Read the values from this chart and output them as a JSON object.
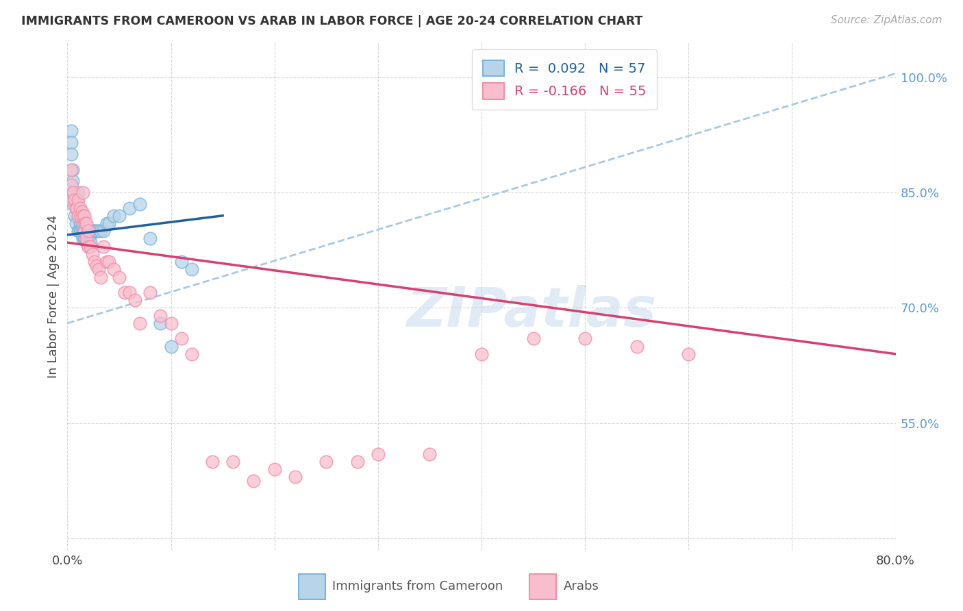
{
  "title": "IMMIGRANTS FROM CAMEROON VS ARAB IN LABOR FORCE | AGE 20-24 CORRELATION CHART",
  "source": "Source: ZipAtlas.com",
  "ylabel": "In Labor Force | Age 20-24",
  "x_min": 0.0,
  "x_max": 0.8,
  "y_min": 0.385,
  "y_max": 1.045,
  "x_ticks": [
    0.0,
    0.1,
    0.2,
    0.3,
    0.4,
    0.5,
    0.6,
    0.7,
    0.8
  ],
  "x_tick_labels": [
    "0.0%",
    "",
    "",
    "",
    "",
    "",
    "",
    "",
    "80.0%"
  ],
  "y_ticks": [
    0.4,
    0.55,
    0.7,
    0.85,
    1.0
  ],
  "y_tick_labels": [
    "",
    "55.0%",
    "70.0%",
    "85.0%",
    "100.0%"
  ],
  "legend_label1": "Immigrants from Cameroon",
  "legend_label2": "Arabs",
  "watermark": "ZIPatlas",
  "blue_face": "#b8d4ea",
  "blue_edge": "#7db5d8",
  "pink_face": "#f9bece",
  "pink_edge": "#f090aa",
  "trend_blue": "#2060a0",
  "trend_pink": "#d84070",
  "dashed_blue": "#a0c4e0",
  "cameroon_x": [
    0.004,
    0.004,
    0.004,
    0.005,
    0.005,
    0.005,
    0.005,
    0.006,
    0.007,
    0.008,
    0.009,
    0.01,
    0.01,
    0.01,
    0.011,
    0.011,
    0.012,
    0.012,
    0.012,
    0.013,
    0.013,
    0.014,
    0.014,
    0.015,
    0.015,
    0.015,
    0.016,
    0.016,
    0.017,
    0.017,
    0.018,
    0.018,
    0.019,
    0.019,
    0.02,
    0.02,
    0.02,
    0.022,
    0.022,
    0.024,
    0.025,
    0.026,
    0.028,
    0.03,
    0.032,
    0.035,
    0.038,
    0.04,
    0.045,
    0.05,
    0.06,
    0.07,
    0.08,
    0.09,
    0.1,
    0.11,
    0.12
  ],
  "cameroon_y": [
    0.93,
    0.915,
    0.9,
    0.88,
    0.865,
    0.85,
    0.835,
    0.84,
    0.82,
    0.81,
    0.84,
    0.85,
    0.83,
    0.8,
    0.82,
    0.8,
    0.82,
    0.81,
    0.8,
    0.81,
    0.8,
    0.805,
    0.795,
    0.81,
    0.8,
    0.79,
    0.8,
    0.79,
    0.8,
    0.79,
    0.795,
    0.785,
    0.795,
    0.785,
    0.8,
    0.79,
    0.78,
    0.795,
    0.785,
    0.8,
    0.8,
    0.8,
    0.8,
    0.8,
    0.8,
    0.8,
    0.81,
    0.81,
    0.82,
    0.82,
    0.83,
    0.835,
    0.79,
    0.68,
    0.65,
    0.76,
    0.75
  ],
  "arab_x": [
    0.004,
    0.004,
    0.004,
    0.006,
    0.007,
    0.008,
    0.009,
    0.01,
    0.01,
    0.012,
    0.013,
    0.014,
    0.015,
    0.015,
    0.016,
    0.016,
    0.017,
    0.018,
    0.018,
    0.02,
    0.02,
    0.022,
    0.024,
    0.026,
    0.028,
    0.03,
    0.032,
    0.035,
    0.038,
    0.04,
    0.045,
    0.05,
    0.055,
    0.06,
    0.065,
    0.07,
    0.08,
    0.09,
    0.1,
    0.11,
    0.12,
    0.14,
    0.16,
    0.18,
    0.2,
    0.22,
    0.25,
    0.28,
    0.3,
    0.35,
    0.4,
    0.45,
    0.5,
    0.55,
    0.6
  ],
  "arab_y": [
    0.88,
    0.86,
    0.84,
    0.85,
    0.84,
    0.83,
    0.83,
    0.84,
    0.82,
    0.83,
    0.82,
    0.825,
    0.85,
    0.82,
    0.82,
    0.8,
    0.81,
    0.81,
    0.79,
    0.8,
    0.78,
    0.78,
    0.77,
    0.76,
    0.755,
    0.75,
    0.74,
    0.78,
    0.76,
    0.76,
    0.75,
    0.74,
    0.72,
    0.72,
    0.71,
    0.68,
    0.72,
    0.69,
    0.68,
    0.66,
    0.64,
    0.5,
    0.5,
    0.475,
    0.49,
    0.48,
    0.5,
    0.5,
    0.51,
    0.51,
    0.64,
    0.66,
    0.66,
    0.65,
    0.64
  ],
  "cameroon_trend_x": [
    0.0,
    0.15
  ],
  "cameroon_trend_y": [
    0.795,
    0.82
  ],
  "arab_trend_x": [
    0.0,
    0.8
  ],
  "arab_trend_y": [
    0.785,
    0.64
  ],
  "dashed_trend_x": [
    0.0,
    0.8
  ],
  "dashed_trend_y": [
    0.68,
    1.005
  ],
  "right_tick_color": "#5b9bd5",
  "left_tick_color": "#444444"
}
